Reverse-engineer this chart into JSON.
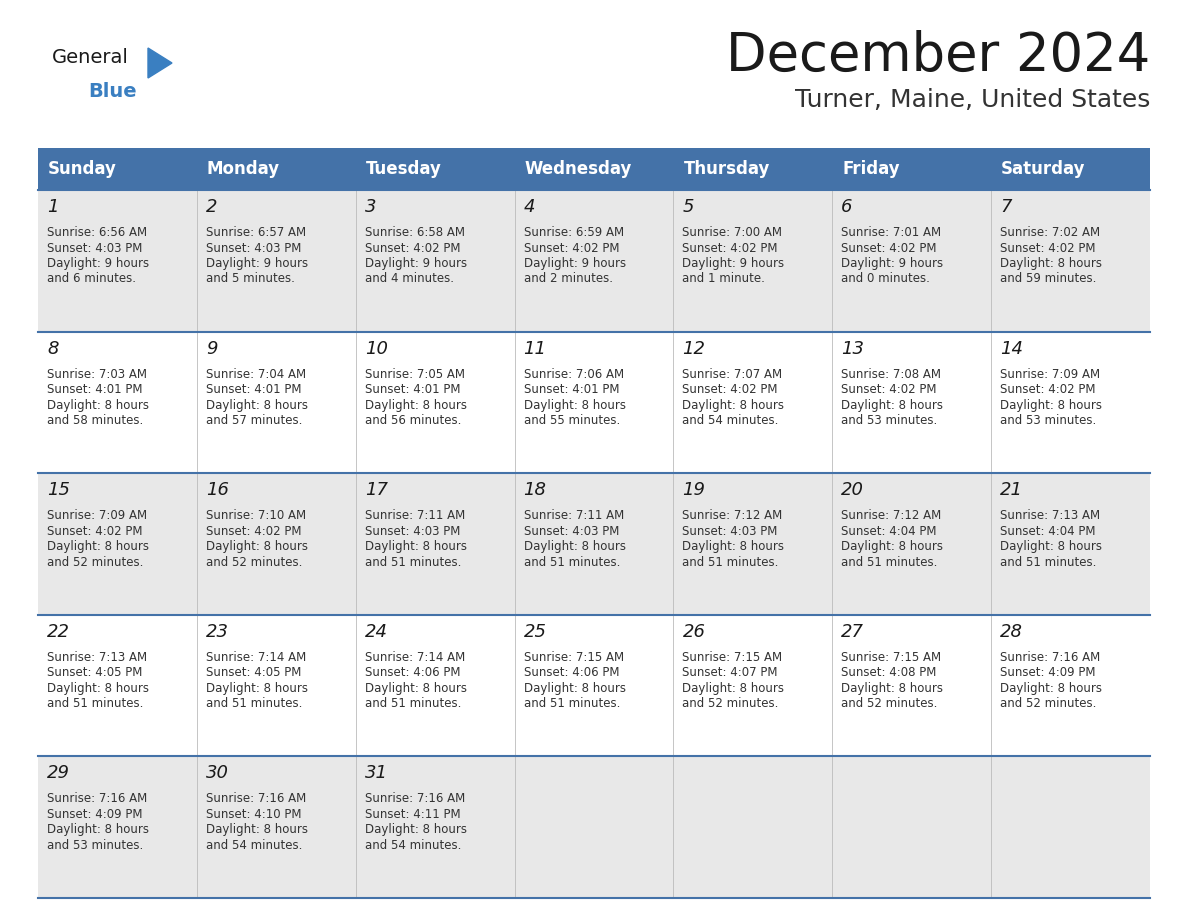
{
  "title": "December 2024",
  "subtitle": "Turner, Maine, United States",
  "header_color": "#4472a8",
  "header_text_color": "#ffffff",
  "day_names": [
    "Sunday",
    "Monday",
    "Tuesday",
    "Wednesday",
    "Thursday",
    "Friday",
    "Saturday"
  ],
  "background_color": "#ffffff",
  "row_bg_even": "#e8e8e8",
  "row_bg_odd": "#ffffff",
  "grid_line_color": "#4472a8",
  "title_color": "#1a1a1a",
  "subtitle_color": "#333333",
  "cell_text_color": "#333333",
  "day_number_color": "#1a1a1a",
  "logo_general_color": "#1a1a1a",
  "logo_blue_color": "#3a7fc1",
  "logo_triangle_color": "#3a7fc1",
  "calendar_data": [
    [
      {
        "day": 1,
        "sunrise": "6:56 AM",
        "sunset": "4:03 PM",
        "daylight_h": "9 hours",
        "daylight_m": "6 minutes."
      },
      {
        "day": 2,
        "sunrise": "6:57 AM",
        "sunset": "4:03 PM",
        "daylight_h": "9 hours",
        "daylight_m": "5 minutes."
      },
      {
        "day": 3,
        "sunrise": "6:58 AM",
        "sunset": "4:02 PM",
        "daylight_h": "9 hours",
        "daylight_m": "4 minutes."
      },
      {
        "day": 4,
        "sunrise": "6:59 AM",
        "sunset": "4:02 PM",
        "daylight_h": "9 hours",
        "daylight_m": "2 minutes."
      },
      {
        "day": 5,
        "sunrise": "7:00 AM",
        "sunset": "4:02 PM",
        "daylight_h": "9 hours",
        "daylight_m": "1 minute."
      },
      {
        "day": 6,
        "sunrise": "7:01 AM",
        "sunset": "4:02 PM",
        "daylight_h": "9 hours",
        "daylight_m": "0 minutes."
      },
      {
        "day": 7,
        "sunrise": "7:02 AM",
        "sunset": "4:02 PM",
        "daylight_h": "8 hours",
        "daylight_m": "59 minutes."
      }
    ],
    [
      {
        "day": 8,
        "sunrise": "7:03 AM",
        "sunset": "4:01 PM",
        "daylight_h": "8 hours",
        "daylight_m": "58 minutes."
      },
      {
        "day": 9,
        "sunrise": "7:04 AM",
        "sunset": "4:01 PM",
        "daylight_h": "8 hours",
        "daylight_m": "57 minutes."
      },
      {
        "day": 10,
        "sunrise": "7:05 AM",
        "sunset": "4:01 PM",
        "daylight_h": "8 hours",
        "daylight_m": "56 minutes."
      },
      {
        "day": 11,
        "sunrise": "7:06 AM",
        "sunset": "4:01 PM",
        "daylight_h": "8 hours",
        "daylight_m": "55 minutes."
      },
      {
        "day": 12,
        "sunrise": "7:07 AM",
        "sunset": "4:02 PM",
        "daylight_h": "8 hours",
        "daylight_m": "54 minutes."
      },
      {
        "day": 13,
        "sunrise": "7:08 AM",
        "sunset": "4:02 PM",
        "daylight_h": "8 hours",
        "daylight_m": "53 minutes."
      },
      {
        "day": 14,
        "sunrise": "7:09 AM",
        "sunset": "4:02 PM",
        "daylight_h": "8 hours",
        "daylight_m": "53 minutes."
      }
    ],
    [
      {
        "day": 15,
        "sunrise": "7:09 AM",
        "sunset": "4:02 PM",
        "daylight_h": "8 hours",
        "daylight_m": "52 minutes."
      },
      {
        "day": 16,
        "sunrise": "7:10 AM",
        "sunset": "4:02 PM",
        "daylight_h": "8 hours",
        "daylight_m": "52 minutes."
      },
      {
        "day": 17,
        "sunrise": "7:11 AM",
        "sunset": "4:03 PM",
        "daylight_h": "8 hours",
        "daylight_m": "51 minutes."
      },
      {
        "day": 18,
        "sunrise": "7:11 AM",
        "sunset": "4:03 PM",
        "daylight_h": "8 hours",
        "daylight_m": "51 minutes."
      },
      {
        "day": 19,
        "sunrise": "7:12 AM",
        "sunset": "4:03 PM",
        "daylight_h": "8 hours",
        "daylight_m": "51 minutes."
      },
      {
        "day": 20,
        "sunrise": "7:12 AM",
        "sunset": "4:04 PM",
        "daylight_h": "8 hours",
        "daylight_m": "51 minutes."
      },
      {
        "day": 21,
        "sunrise": "7:13 AM",
        "sunset": "4:04 PM",
        "daylight_h": "8 hours",
        "daylight_m": "51 minutes."
      }
    ],
    [
      {
        "day": 22,
        "sunrise": "7:13 AM",
        "sunset": "4:05 PM",
        "daylight_h": "8 hours",
        "daylight_m": "51 minutes."
      },
      {
        "day": 23,
        "sunrise": "7:14 AM",
        "sunset": "4:05 PM",
        "daylight_h": "8 hours",
        "daylight_m": "51 minutes."
      },
      {
        "day": 24,
        "sunrise": "7:14 AM",
        "sunset": "4:06 PM",
        "daylight_h": "8 hours",
        "daylight_m": "51 minutes."
      },
      {
        "day": 25,
        "sunrise": "7:15 AM",
        "sunset": "4:06 PM",
        "daylight_h": "8 hours",
        "daylight_m": "51 minutes."
      },
      {
        "day": 26,
        "sunrise": "7:15 AM",
        "sunset": "4:07 PM",
        "daylight_h": "8 hours",
        "daylight_m": "52 minutes."
      },
      {
        "day": 27,
        "sunrise": "7:15 AM",
        "sunset": "4:08 PM",
        "daylight_h": "8 hours",
        "daylight_m": "52 minutes."
      },
      {
        "day": 28,
        "sunrise": "7:16 AM",
        "sunset": "4:09 PM",
        "daylight_h": "8 hours",
        "daylight_m": "52 minutes."
      }
    ],
    [
      {
        "day": 29,
        "sunrise": "7:16 AM",
        "sunset": "4:09 PM",
        "daylight_h": "8 hours",
        "daylight_m": "53 minutes."
      },
      {
        "day": 30,
        "sunrise": "7:16 AM",
        "sunset": "4:10 PM",
        "daylight_h": "8 hours",
        "daylight_m": "54 minutes."
      },
      {
        "day": 31,
        "sunrise": "7:16 AM",
        "sunset": "4:11 PM",
        "daylight_h": "8 hours",
        "daylight_m": "54 minutes."
      },
      null,
      null,
      null,
      null
    ]
  ]
}
